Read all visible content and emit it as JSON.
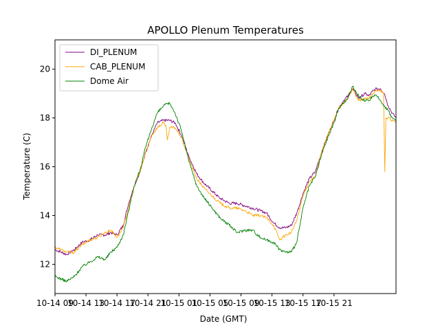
{
  "chart_data": {
    "type": "line",
    "title": "APOLLO Plenum Temperatures",
    "xlabel": "Date (GMT)",
    "ylabel": "Temperature (C)",
    "xlim": [
      0,
      44
    ],
    "ylim": [
      10.8,
      21.2
    ],
    "x_unit": "hours since 10-14 09",
    "x_ticks": [
      {
        "value": 0,
        "label": "10-14 09"
      },
      {
        "value": 4,
        "label": "10-14 13"
      },
      {
        "value": 8,
        "label": "10-14 17"
      },
      {
        "value": 12,
        "label": "10-14 21"
      },
      {
        "value": 16,
        "label": "10-15 01"
      },
      {
        "value": 20,
        "label": "10-15 05"
      },
      {
        "value": 24,
        "label": "10-15 09"
      },
      {
        "value": 28,
        "label": "10-15 13"
      },
      {
        "value": 32,
        "label": "10-15 17"
      },
      {
        "value": 36,
        "label": "10-15 21"
      }
    ],
    "y_ticks": [
      {
        "value": 12,
        "label": "12"
      },
      {
        "value": 14,
        "label": "14"
      },
      {
        "value": 16,
        "label": "16"
      },
      {
        "value": 18,
        "label": "18"
      },
      {
        "value": 20,
        "label": "20"
      }
    ],
    "grid": false,
    "legend_position": "top-left",
    "series": [
      {
        "name": "DI_PLENUM",
        "color": "#800080",
        "x": [
          0,
          0.8,
          1.5,
          2.5,
          3.5,
          4.5,
          5.5,
          6.5,
          7.2,
          8.0,
          8.8,
          9.5,
          10.2,
          11.0,
          11.7,
          12.5,
          13.2,
          14.0,
          14.8,
          15.5,
          16.3,
          17.3,
          18.3,
          19.3,
          20.3,
          21.3,
          22.5,
          23.5,
          24.5,
          25.5,
          26.5,
          27.3,
          28.2,
          29.0,
          29.8,
          30.5,
          31.2,
          32.0,
          32.8,
          33.6,
          34.4,
          35.2,
          36.0,
          36.6,
          37.2,
          37.8,
          38.4,
          39.2,
          40.0,
          40.5,
          41.0,
          41.5,
          42.0,
          42.5,
          43.0,
          43.5,
          44.0
        ],
        "y": [
          12.6,
          12.5,
          12.4,
          12.6,
          12.9,
          13.0,
          13.2,
          13.2,
          13.3,
          13.2,
          13.6,
          14.5,
          15.2,
          15.8,
          16.6,
          17.3,
          17.8,
          17.9,
          17.9,
          17.8,
          17.3,
          16.4,
          15.7,
          15.3,
          15.0,
          14.7,
          14.5,
          14.5,
          14.4,
          14.3,
          14.2,
          14.1,
          13.7,
          13.5,
          13.5,
          13.6,
          14.1,
          14.9,
          15.5,
          15.8,
          16.6,
          17.3,
          17.9,
          18.4,
          18.7,
          18.9,
          19.2,
          18.8,
          19.0,
          18.9,
          19.1,
          19.2,
          19.2,
          19.0,
          18.5,
          18.2,
          18.0
        ]
      },
      {
        "name": "CAB_PLENUM",
        "color": "#ffa500",
        "x": [
          0,
          0.8,
          1.5,
          2.5,
          3.5,
          4.5,
          5.5,
          6.5,
          7.2,
          8.0,
          8.8,
          9.5,
          10.2,
          11.0,
          11.7,
          12.5,
          13.2,
          14.0,
          14.3,
          14.5,
          14.8,
          15.5,
          16.3,
          17.3,
          18.3,
          19.3,
          20.3,
          21.3,
          22.5,
          23.5,
          24.5,
          25.5,
          26.5,
          27.3,
          28.2,
          29.0,
          29.8,
          30.5,
          31.2,
          32.0,
          32.8,
          33.6,
          34.4,
          35.2,
          36.0,
          36.6,
          37.2,
          37.8,
          38.4,
          39.2,
          40.0,
          40.5,
          41.0,
          41.5,
          42.0,
          42.4,
          42.55,
          42.7,
          43.0,
          43.5,
          44.0
        ],
        "y": [
          12.7,
          12.6,
          12.5,
          12.5,
          12.8,
          13.0,
          13.1,
          13.3,
          13.4,
          13.1,
          13.5,
          14.3,
          15.2,
          15.8,
          16.6,
          17.3,
          17.6,
          17.8,
          17.7,
          17.1,
          17.6,
          17.6,
          17.2,
          16.3,
          15.5,
          15.1,
          14.8,
          14.5,
          14.3,
          14.3,
          14.2,
          14.0,
          14.0,
          13.9,
          13.6,
          13.0,
          13.2,
          13.3,
          13.8,
          14.8,
          15.4,
          15.6,
          16.6,
          17.3,
          17.9,
          18.4,
          18.6,
          18.8,
          19.2,
          18.7,
          18.8,
          18.8,
          19.0,
          19.1,
          19.1,
          19.0,
          15.8,
          18.0,
          18.0,
          17.9,
          17.8
        ]
      },
      {
        "name": "Dome Air",
        "color": "#008000",
        "x": [
          0,
          0.8,
          1.5,
          2.5,
          3.5,
          4.5,
          5.5,
          6.5,
          7.2,
          8.0,
          8.8,
          9.5,
          10.2,
          11.0,
          11.7,
          12.5,
          13.2,
          14.0,
          14.8,
          15.5,
          16.3,
          17.3,
          18.3,
          19.3,
          20.3,
          21.3,
          22.5,
          23.5,
          24.5,
          25.5,
          26.5,
          27.3,
          28.2,
          29.0,
          29.8,
          30.5,
          31.2,
          32.0,
          32.8,
          33.6,
          34.4,
          35.2,
          36.0,
          36.6,
          37.2,
          37.8,
          38.4,
          39.2,
          40.0,
          40.5,
          41.0,
          41.5,
          42.0,
          42.5,
          43.0,
          43.5,
          44.0
        ],
        "y": [
          11.5,
          11.4,
          11.3,
          11.5,
          11.9,
          12.1,
          12.3,
          12.2,
          12.5,
          12.7,
          13.2,
          14.2,
          15.2,
          15.9,
          16.8,
          17.6,
          18.2,
          18.5,
          18.6,
          18.2,
          17.5,
          16.2,
          15.2,
          14.7,
          14.3,
          13.9,
          13.6,
          13.3,
          13.4,
          13.4,
          13.1,
          13.0,
          12.9,
          12.6,
          12.5,
          12.5,
          12.9,
          14.3,
          15.2,
          15.6,
          16.5,
          17.2,
          17.8,
          18.4,
          18.6,
          18.8,
          19.3,
          18.9,
          18.7,
          18.7,
          18.9,
          18.9,
          18.7,
          18.5,
          18.3,
          18.0,
          17.9
        ]
      }
    ]
  }
}
